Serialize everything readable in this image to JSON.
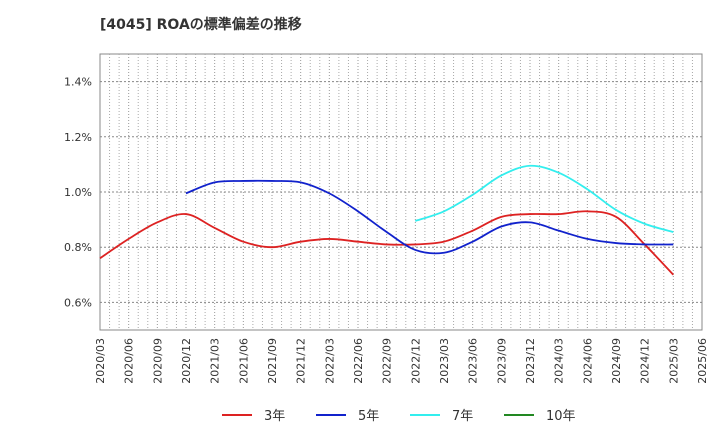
{
  "title": "[4045]  ROAの標準偏差の推移",
  "chart_data": {
    "type": "line",
    "title": "[4045]  ROAの標準偏差の推移",
    "xlabel": "",
    "ylabel": "",
    "ylim": [
      0.5,
      1.5
    ],
    "yticks": [
      0.6,
      0.8,
      1.0,
      1.2,
      1.4
    ],
    "ytick_labels": [
      "0.6%",
      "0.8%",
      "1.0%",
      "1.2%",
      "1.4%"
    ],
    "grid": true,
    "legend_position": "bottom",
    "categories": [
      "2020/03",
      "2020/06",
      "2020/09",
      "2020/12",
      "2021/03",
      "2021/06",
      "2021/09",
      "2021/12",
      "2022/03",
      "2022/06",
      "2022/09",
      "2022/12",
      "2023/03",
      "2023/06",
      "2023/09",
      "2023/12",
      "2024/03",
      "2024/06",
      "2024/09",
      "2024/12",
      "2025/03",
      "2025/06"
    ],
    "series": [
      {
        "name": "3年",
        "color": "#dd2222",
        "values": [
          0.76,
          0.83,
          0.89,
          0.92,
          0.87,
          0.82,
          0.8,
          0.82,
          0.83,
          0.82,
          0.81,
          0.81,
          0.82,
          0.86,
          0.91,
          0.92,
          0.92,
          0.93,
          0.91,
          0.81,
          0.7,
          null
        ]
      },
      {
        "name": "5年",
        "color": "#1122cc",
        "values": [
          null,
          null,
          null,
          0.995,
          1.035,
          1.04,
          1.04,
          1.035,
          0.995,
          0.93,
          0.855,
          0.79,
          0.78,
          0.82,
          0.875,
          0.89,
          0.86,
          0.83,
          0.815,
          0.81,
          0.81,
          null
        ]
      },
      {
        "name": "7年",
        "color": "#33eeee",
        "values": [
          null,
          null,
          null,
          null,
          null,
          null,
          null,
          null,
          null,
          null,
          null,
          0.895,
          0.93,
          0.99,
          1.06,
          1.095,
          1.07,
          1.01,
          0.935,
          0.885,
          0.855,
          null
        ]
      },
      {
        "name": "10年",
        "color": "#228822",
        "values": [
          null,
          null,
          null,
          null,
          null,
          null,
          null,
          null,
          null,
          null,
          null,
          null,
          null,
          null,
          null,
          null,
          null,
          null,
          null,
          null,
          null,
          null
        ]
      }
    ]
  }
}
